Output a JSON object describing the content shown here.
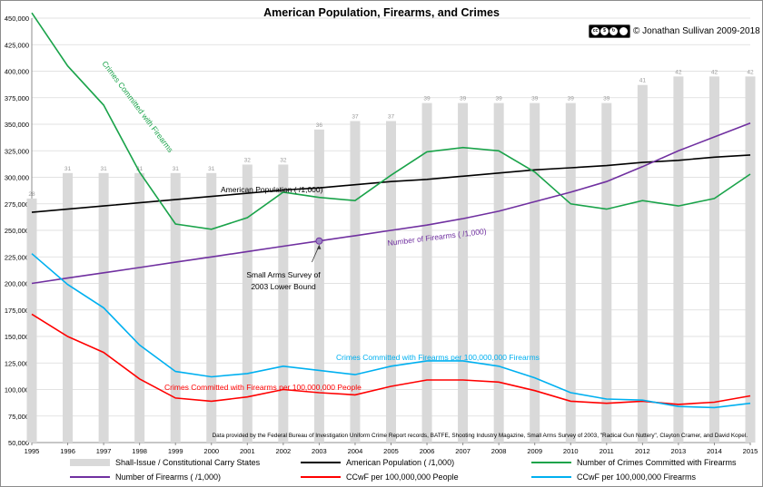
{
  "chart_data": {
    "type": "bar+line",
    "title": "American Population, Firearms, and Crimes",
    "copyright": "© Jonathan Sullivan 2009-2018",
    "license_badge": "cc-by-nc-sa",
    "years": [
      "1995",
      "1996",
      "1997",
      "1998",
      "1999",
      "2000",
      "2001",
      "2002",
      "2003",
      "2004",
      "2005",
      "2006",
      "2007",
      "2008",
      "2009",
      "2010",
      "2011",
      "2012",
      "2013",
      "2014",
      "2015"
    ],
    "ylim": [
      50000,
      450000
    ],
    "yticks": [
      "50,000",
      "75,000",
      "100,000",
      "125,000",
      "150,000",
      "175,000",
      "200,000",
      "225,000",
      "250,000",
      "275,000",
      "300,000",
      "325,000",
      "350,000",
      "375,000",
      "400,000",
      "425,000",
      "450,000"
    ],
    "grid": true,
    "bars": {
      "name": "Shall-Issue / Constitutional Carry States",
      "color": "#d9d9d9",
      "labels": [
        "28",
        "31",
        "31",
        "31",
        "31",
        "31",
        "32",
        "32",
        "36",
        "37",
        "37",
        "39",
        "39",
        "39",
        "39",
        "39",
        "39",
        "41",
        "42",
        "42",
        "42"
      ],
      "values": [
        280000,
        304000,
        304000,
        304000,
        304000,
        304000,
        312000,
        312000,
        345000,
        353000,
        353000,
        370000,
        370000,
        370000,
        370000,
        370000,
        370000,
        387000,
        395000,
        395000,
        395000
      ]
    },
    "series": [
      {
        "name": "American Population ( /1,000)",
        "color": "#000000",
        "values": [
          267000,
          270000,
          273000,
          276000,
          279000,
          282000,
          285000,
          288000,
          290000,
          293000,
          296000,
          298000,
          301000,
          304000,
          307000,
          309000,
          311000,
          314000,
          316000,
          319000,
          321000
        ]
      },
      {
        "name": "Number of Crimes Committed with Firearms",
        "color": "#1aa34a",
        "values": [
          455000,
          405000,
          368000,
          305000,
          256000,
          251000,
          262000,
          286000,
          281000,
          278000,
          302000,
          324000,
          328000,
          325000,
          305000,
          275000,
          270000,
          278000,
          273000,
          280000,
          303000
        ]
      },
      {
        "name": "Number of Firearms ( /1,000)",
        "color": "#7030a0",
        "values": [
          200000,
          205000,
          210000,
          215000,
          220000,
          225000,
          230000,
          235000,
          240000,
          245000,
          250000,
          255000,
          261000,
          268000,
          277000,
          286000,
          296000,
          310000,
          325000,
          338000,
          351000
        ]
      },
      {
        "name": "CCwF per 100,000,000 People",
        "color": "#ff0000",
        "values": [
          171000,
          150000,
          135000,
          110000,
          92000,
          89000,
          93000,
          100000,
          97000,
          95000,
          103000,
          109000,
          109000,
          107000,
          99000,
          89000,
          87000,
          89000,
          86000,
          88000,
          94000
        ]
      },
      {
        "name": "CCwF per 100,000,000 Firearms",
        "color": "#00b0f0",
        "values": [
          228000,
          199000,
          177000,
          142000,
          117000,
          112000,
          115000,
          122000,
          118000,
          114000,
          122000,
          127000,
          127000,
          122000,
          111000,
          97000,
          91000,
          90000,
          84000,
          83000,
          87000
        ]
      }
    ],
    "annotations": {
      "crimes_label": "Crimes Committed with Firearms",
      "population_label": "American Population ( /1,000)",
      "firearms_label": "Number of Firearms ( /1,000)",
      "survey_label_1": "Small Arms Survey of",
      "survey_label_2": "2003 Lower Bound",
      "blue_label": "Crimes Committed with Firearms per 100,000,000 Firearms",
      "red_label": "Crimes Committed with Firearms per 100,000,000 People",
      "source": "Data provided by the Federal Bureau of Investigation Uniform Crime Report records, BATFE, Shooting Industry Magazine, Small Arms Survey of 2003, \"Radical Gun Nuttery\", Clayton Cramer, and David Kopel."
    },
    "legend": [
      "Shall-Issue / Constitutional Carry States",
      "American Population ( /1,000)",
      "Number of Crimes Committed with Firearms",
      "Number of Firearms ( /1,000)",
      "CCwF per 100,000,000 People",
      "CCwF per 100,000,000 Firearms"
    ]
  }
}
